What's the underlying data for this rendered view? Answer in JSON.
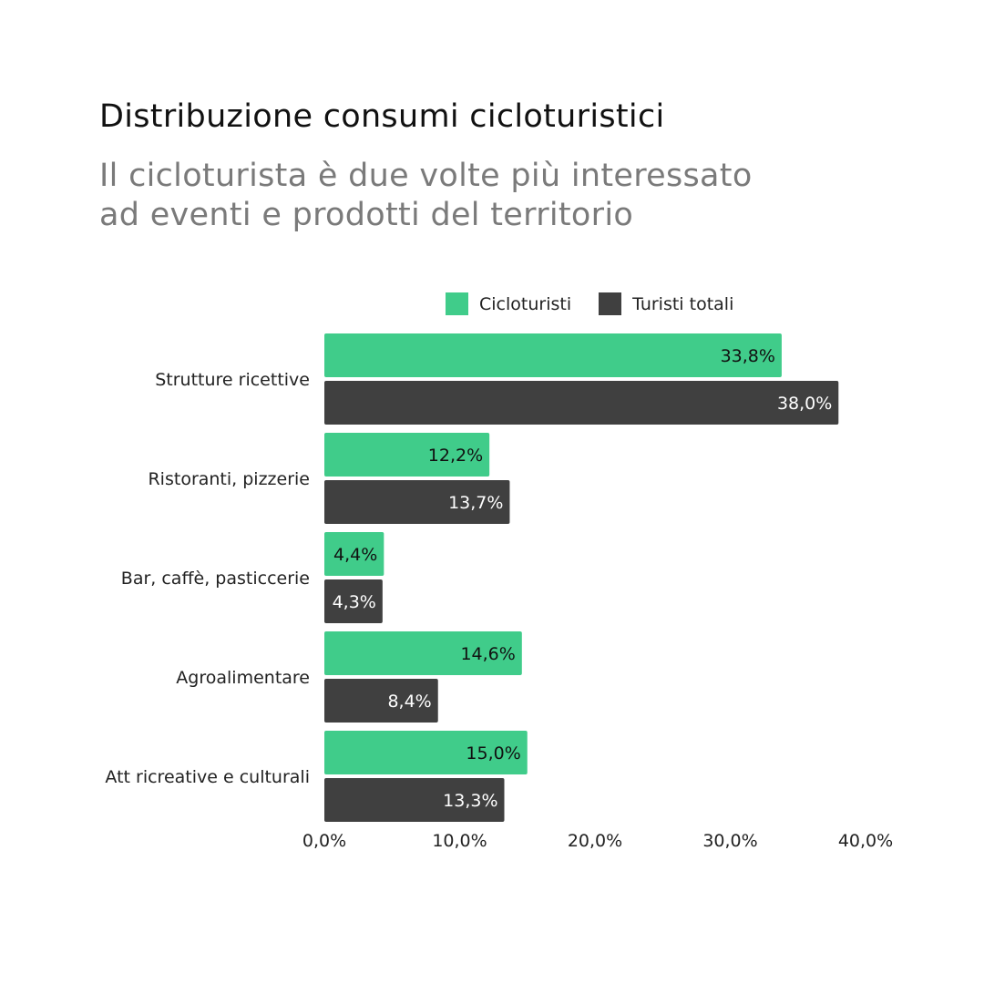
{
  "title": "Distribuzione consumi cicloturistici",
  "subtitle": {
    "line1": "Il cicloturista è due volte più interessato",
    "line2": "ad eventi e prodotti del territorio"
  },
  "legend": {
    "items": [
      {
        "label": "Cicloturisti",
        "color": "#40cc8a"
      },
      {
        "label": "Turisti totali",
        "color": "#404040"
      }
    ]
  },
  "chart_data": {
    "type": "bar",
    "orientation": "horizontal",
    "categories": [
      "Strutture ricettive",
      "Ristoranti, pizzerie",
      "Bar, caffè, pasticcerie",
      "Agroalimentare",
      "Att ricreative e culturali"
    ],
    "series": [
      {
        "name": "Cicloturisti",
        "color": "#40cc8a",
        "values": [
          33.8,
          12.2,
          4.4,
          14.6,
          15.0
        ],
        "labels": [
          "33,8%",
          "12,2%",
          "4,4%",
          "14,6%",
          "15,0%"
        ],
        "label_color": "#111111"
      },
      {
        "name": "Turisti totali",
        "color": "#404040",
        "values": [
          38.0,
          13.7,
          4.3,
          8.4,
          13.3
        ],
        "labels": [
          "38,0%",
          "13,7%",
          "4,3%",
          "8,4%",
          "13,3%"
        ],
        "label_color": "#ffffff"
      }
    ],
    "xlim": [
      0,
      40
    ],
    "xticks": [
      "0,0%",
      "10,0%",
      "20,0%",
      "30,0%",
      "40,0%"
    ],
    "xtick_values": [
      0,
      10,
      20,
      30,
      40
    ],
    "grid": false,
    "legend_position": "top"
  }
}
